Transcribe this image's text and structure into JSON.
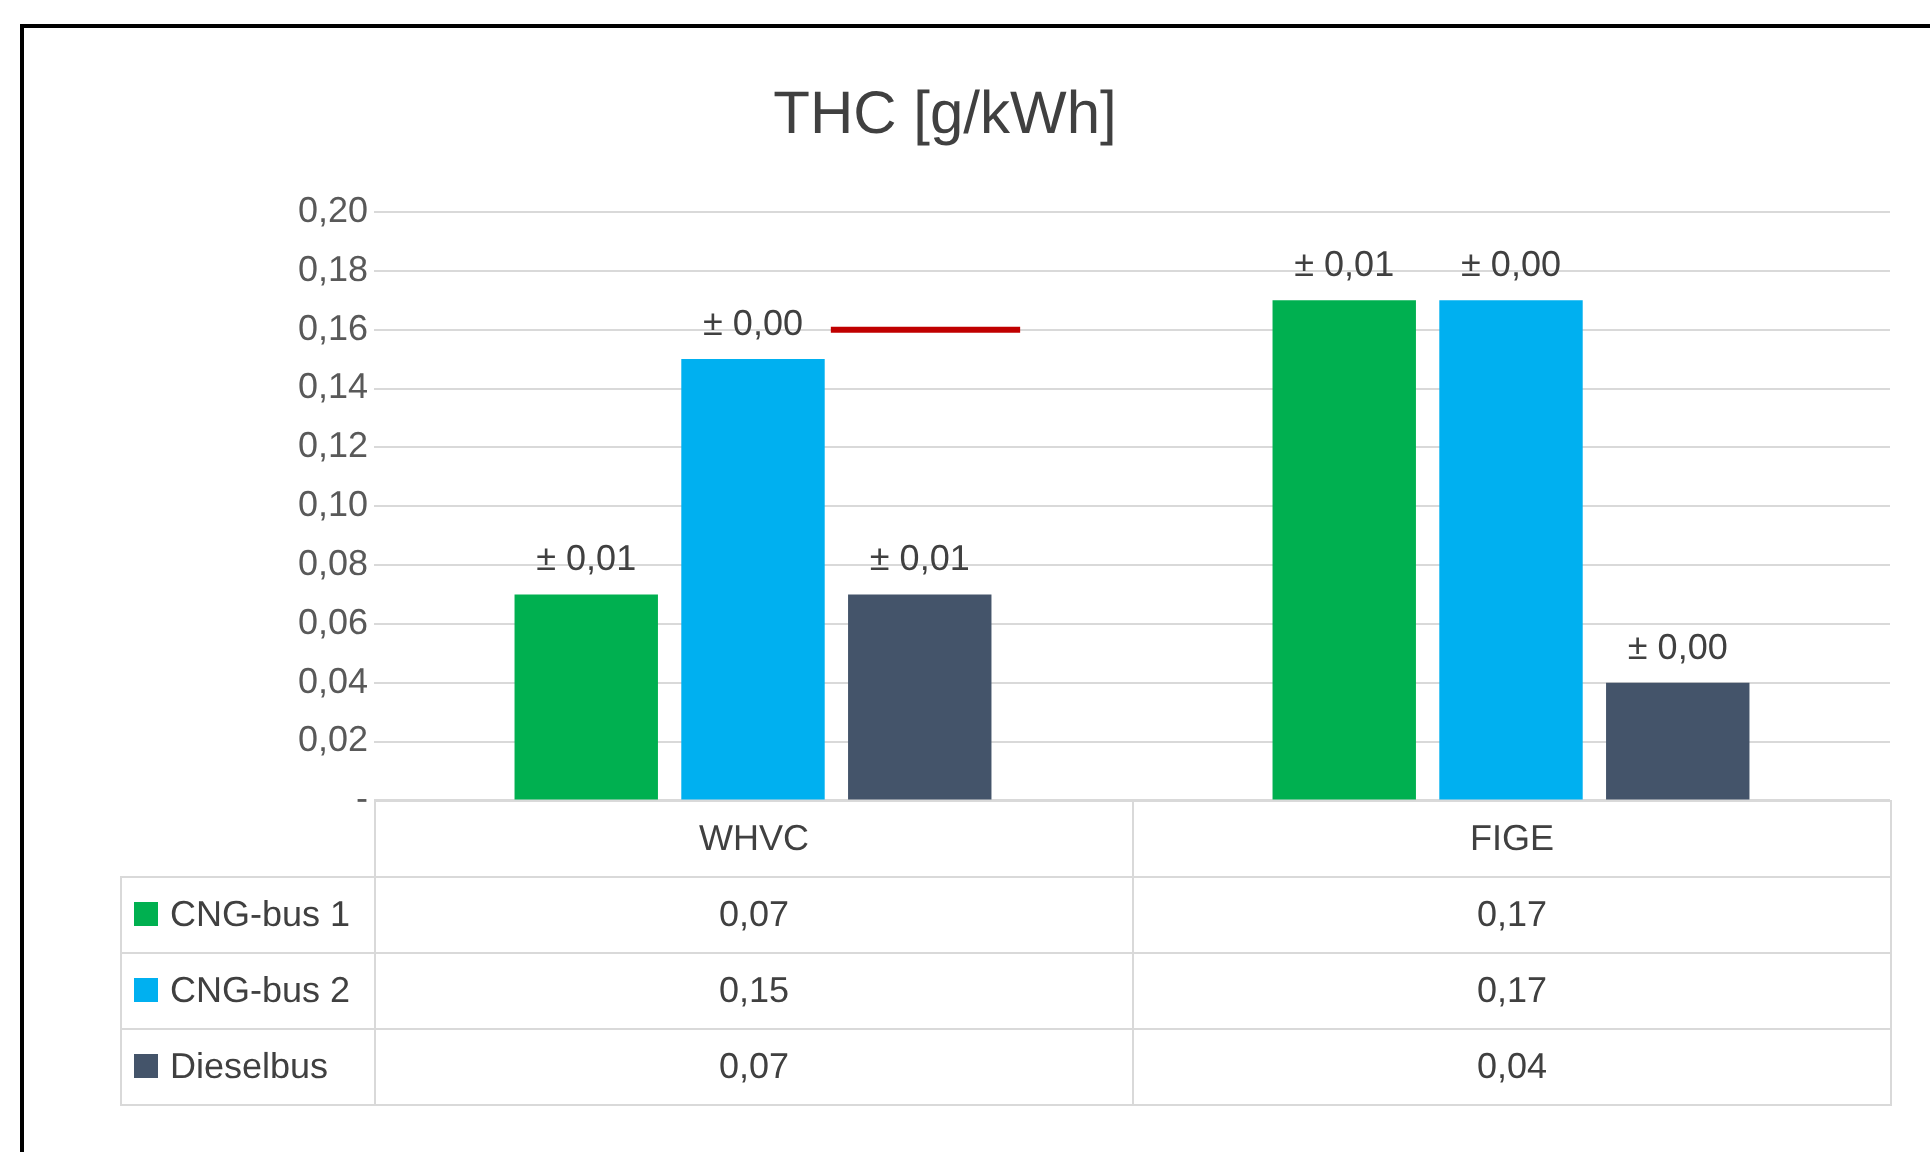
{
  "chart_data": {
    "type": "bar",
    "title": "THC [g/kWh]",
    "categories": [
      "WHVC",
      "FIGE"
    ],
    "series": [
      {
        "name": "CNG-bus 1",
        "color": "#00b050",
        "values": [
          0.07,
          0.17
        ],
        "value_labels": [
          "0,07",
          "0,17"
        ]
      },
      {
        "name": "CNG-bus 2",
        "color": "#00b0f0",
        "values": [
          0.15,
          0.17
        ],
        "value_labels": [
          "0,15",
          "0,17"
        ]
      },
      {
        "name": "Dieselbus",
        "color": "#44546a",
        "values": [
          0.07,
          0.04
        ],
        "value_labels": [
          "0,07",
          "0,04"
        ]
      }
    ],
    "annotations": [
      "± 0,01",
      "± 0,01",
      "± 0,00",
      "± 0,00",
      "± 0,01",
      "± 0,00"
    ],
    "ylim": [
      0,
      0.2
    ],
    "yticks": [
      {
        "value": 0,
        "label": "-"
      },
      {
        "value": 0.02,
        "label": "0,02"
      },
      {
        "value": 0.04,
        "label": "0,04"
      },
      {
        "value": 0.06,
        "label": "0,06"
      },
      {
        "value": 0.08,
        "label": "0,08"
      },
      {
        "value": 0.1,
        "label": "0,10"
      },
      {
        "value": 0.12,
        "label": "0,12"
      },
      {
        "value": 0.14,
        "label": "0,14"
      },
      {
        "value": 0.16,
        "label": "0,16"
      },
      {
        "value": 0.18,
        "label": "0,18"
      },
      {
        "value": 0.2,
        "label": "0,20"
      }
    ],
    "ref_lines": [
      {
        "axis": "y",
        "value": 0.16,
        "color": "#c00000"
      }
    ],
    "grid": "y",
    "legend": "bottom"
  }
}
